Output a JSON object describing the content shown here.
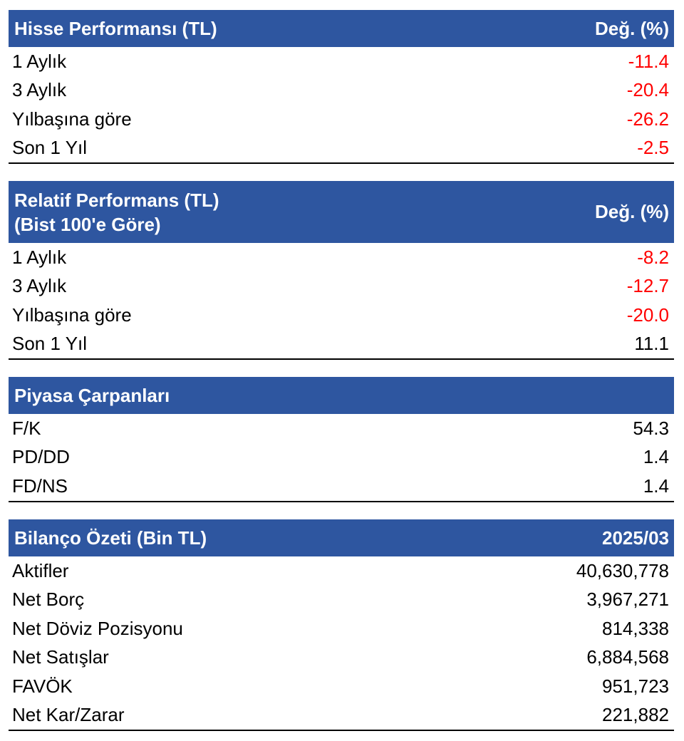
{
  "colors": {
    "header_bg": "#2e56a0",
    "header_text": "#ffffff",
    "negative": "#ff0000",
    "positive": "#000000"
  },
  "hisse": {
    "title": "Hisse Performansı (TL)",
    "col": "Değ. (%)",
    "rows": [
      {
        "label": "1 Aylık",
        "value": "-11.4"
      },
      {
        "label": "3 Aylık",
        "value": "-20.4"
      },
      {
        "label": "Yılbaşına göre",
        "value": "-26.2"
      },
      {
        "label": "Son 1 Yıl",
        "value": "-2.5"
      }
    ]
  },
  "relatif": {
    "title_line1": "Relatif Performans (TL)",
    "title_line2": "(Bist 100'e Göre)",
    "col": "Değ. (%)",
    "rows": [
      {
        "label": "1 Aylık",
        "value": "-8.2"
      },
      {
        "label": "3 Aylık",
        "value": "-12.7"
      },
      {
        "label": "Yılbaşına göre",
        "value": "-20.0"
      },
      {
        "label": "Son 1 Yıl",
        "value": "11.1"
      }
    ]
  },
  "carpanlar": {
    "title": "Piyasa Çarpanları",
    "rows": [
      {
        "label": "F/K",
        "value": "54.3"
      },
      {
        "label": "PD/DD",
        "value": "1.4"
      },
      {
        "label": "FD/NS",
        "value": "1.4"
      }
    ]
  },
  "bilanco": {
    "title": "Bilanço Özeti (Bin TL)",
    "col": "2025/03",
    "rows": [
      {
        "label": "Aktifler",
        "value": "40,630,778"
      },
      {
        "label": "Net Borç",
        "value": "3,967,271"
      },
      {
        "label": "Net Döviz Pozisyonu",
        "value": "814,338"
      },
      {
        "label": "Net Satışlar",
        "value": "6,884,568"
      },
      {
        "label": "FAVÖK",
        "value": "951,723"
      },
      {
        "label": "Net Kar/Zarar",
        "value": "221,882"
      }
    ]
  }
}
